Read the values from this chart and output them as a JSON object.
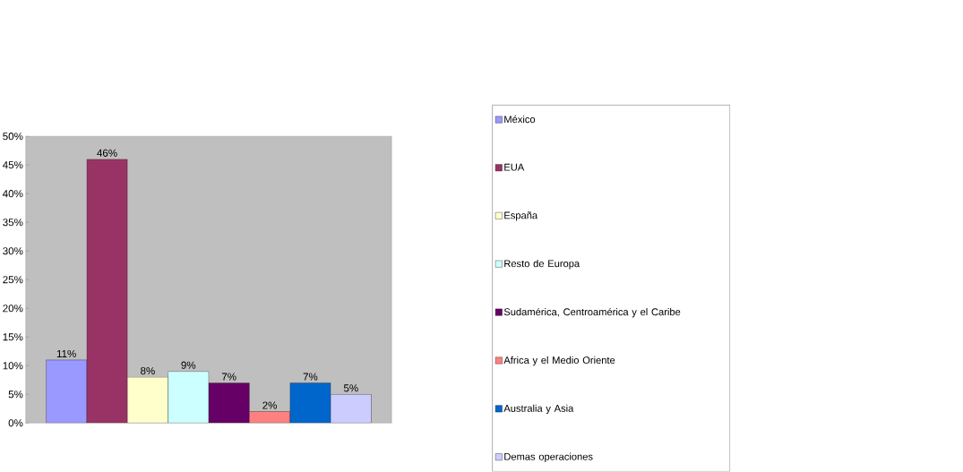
{
  "chart_data": {
    "type": "bar",
    "categories": [
      null
    ],
    "series": [
      {
        "name": "México",
        "color": "#9999ff",
        "values": [
          11
        ],
        "value_labels": [
          "11%"
        ]
      },
      {
        "name": "EUA",
        "color": "#993366",
        "values": [
          46
        ],
        "value_labels": [
          "46%"
        ]
      },
      {
        "name": "España",
        "color": "#ffffcc",
        "values": [
          8
        ],
        "value_labels": [
          "8%"
        ]
      },
      {
        "name": "Resto de Europa",
        "color": "#ccffff",
        "values": [
          9
        ],
        "value_labels": [
          "9%"
        ]
      },
      {
        "name": "Sudamérica, Centroamérica y el Caribe",
        "color": "#660066",
        "values": [
          7
        ],
        "value_labels": [
          "7%"
        ]
      },
      {
        "name": "Africa y el Medio Oriente",
        "color": "#ff8080",
        "values": [
          2
        ],
        "value_labels": [
          "2%"
        ]
      },
      {
        "name": "Australia y Asia",
        "color": "#0066cc",
        "values": [
          7
        ],
        "value_labels": [
          "7%"
        ]
      },
      {
        "name": "Demas operaciones",
        "color": "#ccccff",
        "values": [
          5
        ],
        "value_labels": [
          "5%"
        ]
      }
    ],
    "ylim": [
      0,
      50
    ],
    "yticks": [
      {
        "value": 0,
        "label": "0%"
      },
      {
        "value": 5,
        "label": "5%"
      },
      {
        "value": 10,
        "label": "10%"
      },
      {
        "value": 15,
        "label": "15%"
      },
      {
        "value": 20,
        "label": "20%"
      },
      {
        "value": 25,
        "label": "25%"
      },
      {
        "value": 30,
        "label": "30%"
      },
      {
        "value": 35,
        "label": "35%"
      },
      {
        "value": 40,
        "label": "40%"
      },
      {
        "value": 45,
        "label": "45%"
      },
      {
        "value": 50,
        "label": "50%"
      }
    ],
    "tick_labels": "y",
    "legend": "right",
    "grid": false
  }
}
